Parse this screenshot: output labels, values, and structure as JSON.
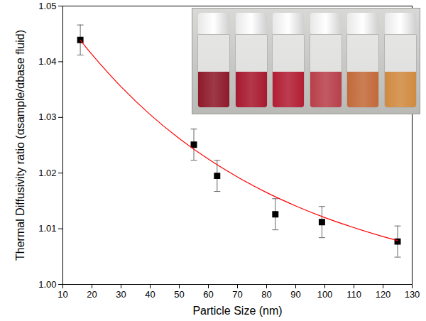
{
  "chart_data": {
    "type": "scatter",
    "x_label": "Particle Size (nm)",
    "y_label": "Thermal Diffusivity ratio (αsample/αbase fluid)",
    "xlim": [
      10,
      130
    ],
    "xticks": [
      10,
      20,
      30,
      40,
      50,
      60,
      70,
      80,
      90,
      100,
      110,
      120,
      130
    ],
    "ylim": [
      1.0,
      1.05
    ],
    "yticks": [
      {
        "value": 1.0,
        "label": "1.00"
      },
      {
        "value": 1.01,
        "label": "1.01"
      },
      {
        "value": 1.02,
        "label": "1.02"
      },
      {
        "value": 1.03,
        "label": "1.03"
      },
      {
        "value": 1.04,
        "label": "1.04"
      },
      {
        "value": 1.05,
        "label": "1.05"
      }
    ],
    "grid": false,
    "series": [
      {
        "type": "scatter",
        "marker": "square",
        "color": "#000000",
        "x": [
          16,
          55,
          63,
          83,
          99,
          125
        ],
        "values": [
          1.0439,
          1.0251,
          1.0195,
          1.0126,
          1.0112,
          1.0077
        ],
        "error": [
          0.0027,
          0.0028,
          0.0028,
          0.0028,
          0.0028,
          0.0028
        ]
      },
      {
        "type": "line",
        "line_style": "solid",
        "color": "#ff0000",
        "x": [
          16,
          20,
          30,
          40,
          50,
          60,
          70,
          80,
          90,
          100,
          110,
          120,
          125
        ],
        "values": [
          1.0439,
          1.0413,
          1.0355,
          1.0305,
          1.0262,
          1.0225,
          1.0193,
          1.0165,
          1.0141,
          1.012,
          1.0102,
          1.0086,
          1.0079
        ]
      }
    ]
  }
}
